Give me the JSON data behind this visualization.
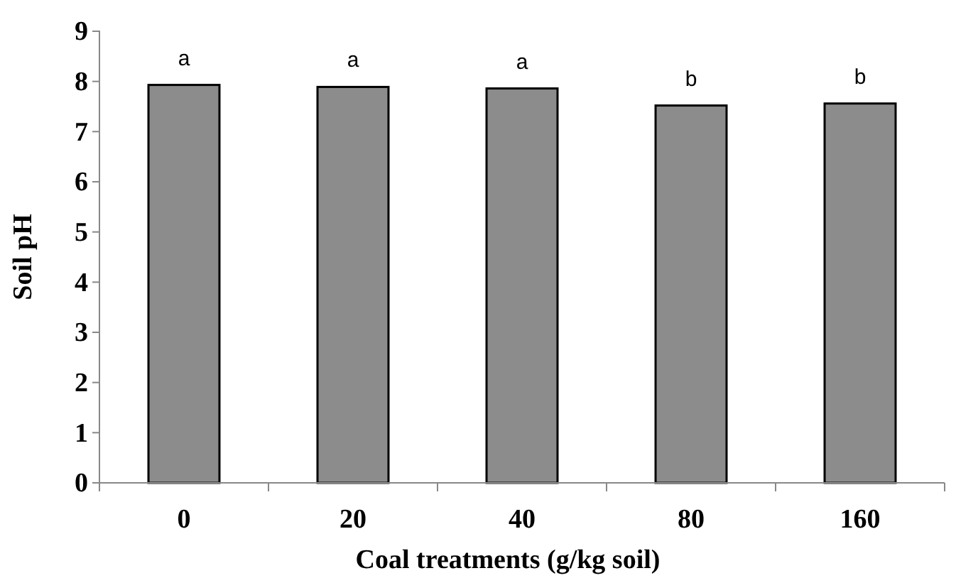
{
  "chart_data": {
    "type": "bar",
    "xlabel": "Coal treatments (g/kg soil)",
    "ylabel": "Soil pH",
    "categories": [
      "0",
      "20",
      "40",
      "80",
      "160"
    ],
    "values": [
      7.93,
      7.89,
      7.86,
      7.52,
      7.56
    ],
    "color": "#8c8c8c",
    "ylim": [
      0,
      9
    ],
    "yticks": [
      0,
      1,
      2,
      3,
      4,
      5,
      6,
      7,
      8,
      9
    ],
    "grid": false,
    "annotations": [
      {
        "text": "a",
        "x": "0",
        "y": 7.93
      },
      {
        "text": "a",
        "x": "20",
        "y": 7.89
      },
      {
        "text": "a",
        "x": "40",
        "y": 7.86
      },
      {
        "text": "b",
        "x": "80",
        "y": 7.52
      },
      {
        "text": "b",
        "x": "160",
        "y": 7.56
      }
    ]
  }
}
